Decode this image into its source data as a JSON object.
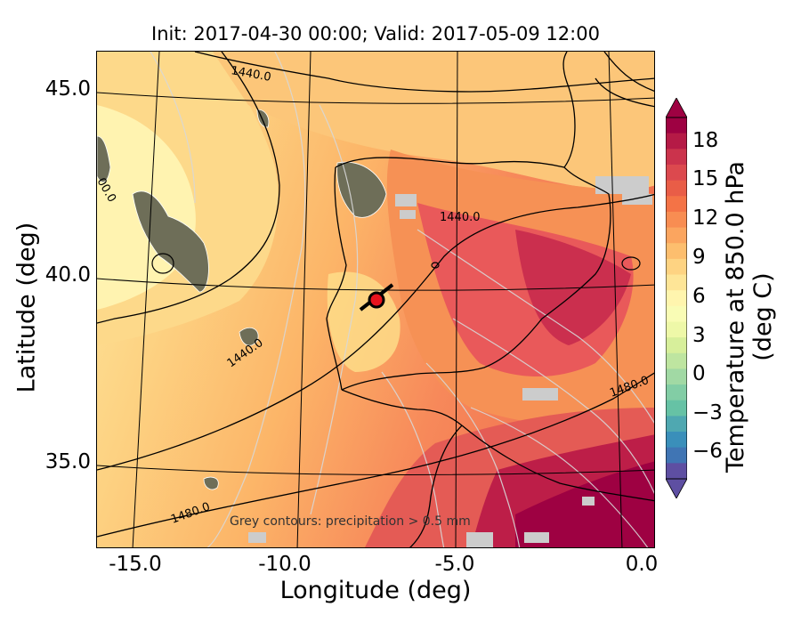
{
  "title": "Init: 2017-04-30 00:00; Valid: 2017-05-09 12:00",
  "xlabel": "Longitude (deg)",
  "ylabel": "Latitude (deg)",
  "x_ticks": [
    "-15.0",
    "-10.0",
    "-5.0",
    "0.0"
  ],
  "y_ticks": [
    "45.0",
    "40.0",
    "35.0"
  ],
  "colorbar": {
    "label": "Temperature at 850.0 hPa (deg C)",
    "ticks": [
      "18",
      "15",
      "12",
      "9",
      "6",
      "3",
      "0",
      "−3",
      "−6"
    ],
    "range": [
      -8,
      20
    ],
    "extend": "both"
  },
  "contour_labels": [
    "1440.0",
    "1440.0",
    "1440.0",
    "1480.0",
    "1480.0",
    "00.0"
  ],
  "precip_note": "Grey contours: precipitation > 0.5 mm",
  "marker": {
    "lon": -7.6,
    "lat": 39.3,
    "color": "#e8141e"
  },
  "colors": {
    "cold": "#fff6b0",
    "cool": "#fee08b",
    "mild": "#fdbe6e",
    "warm": "#f88d52",
    "hot": "#e04e4e",
    "very_hot": "#c11c47",
    "extreme": "#9e0142",
    "precip": "#6e6e58",
    "missing": "#cccccc"
  }
}
